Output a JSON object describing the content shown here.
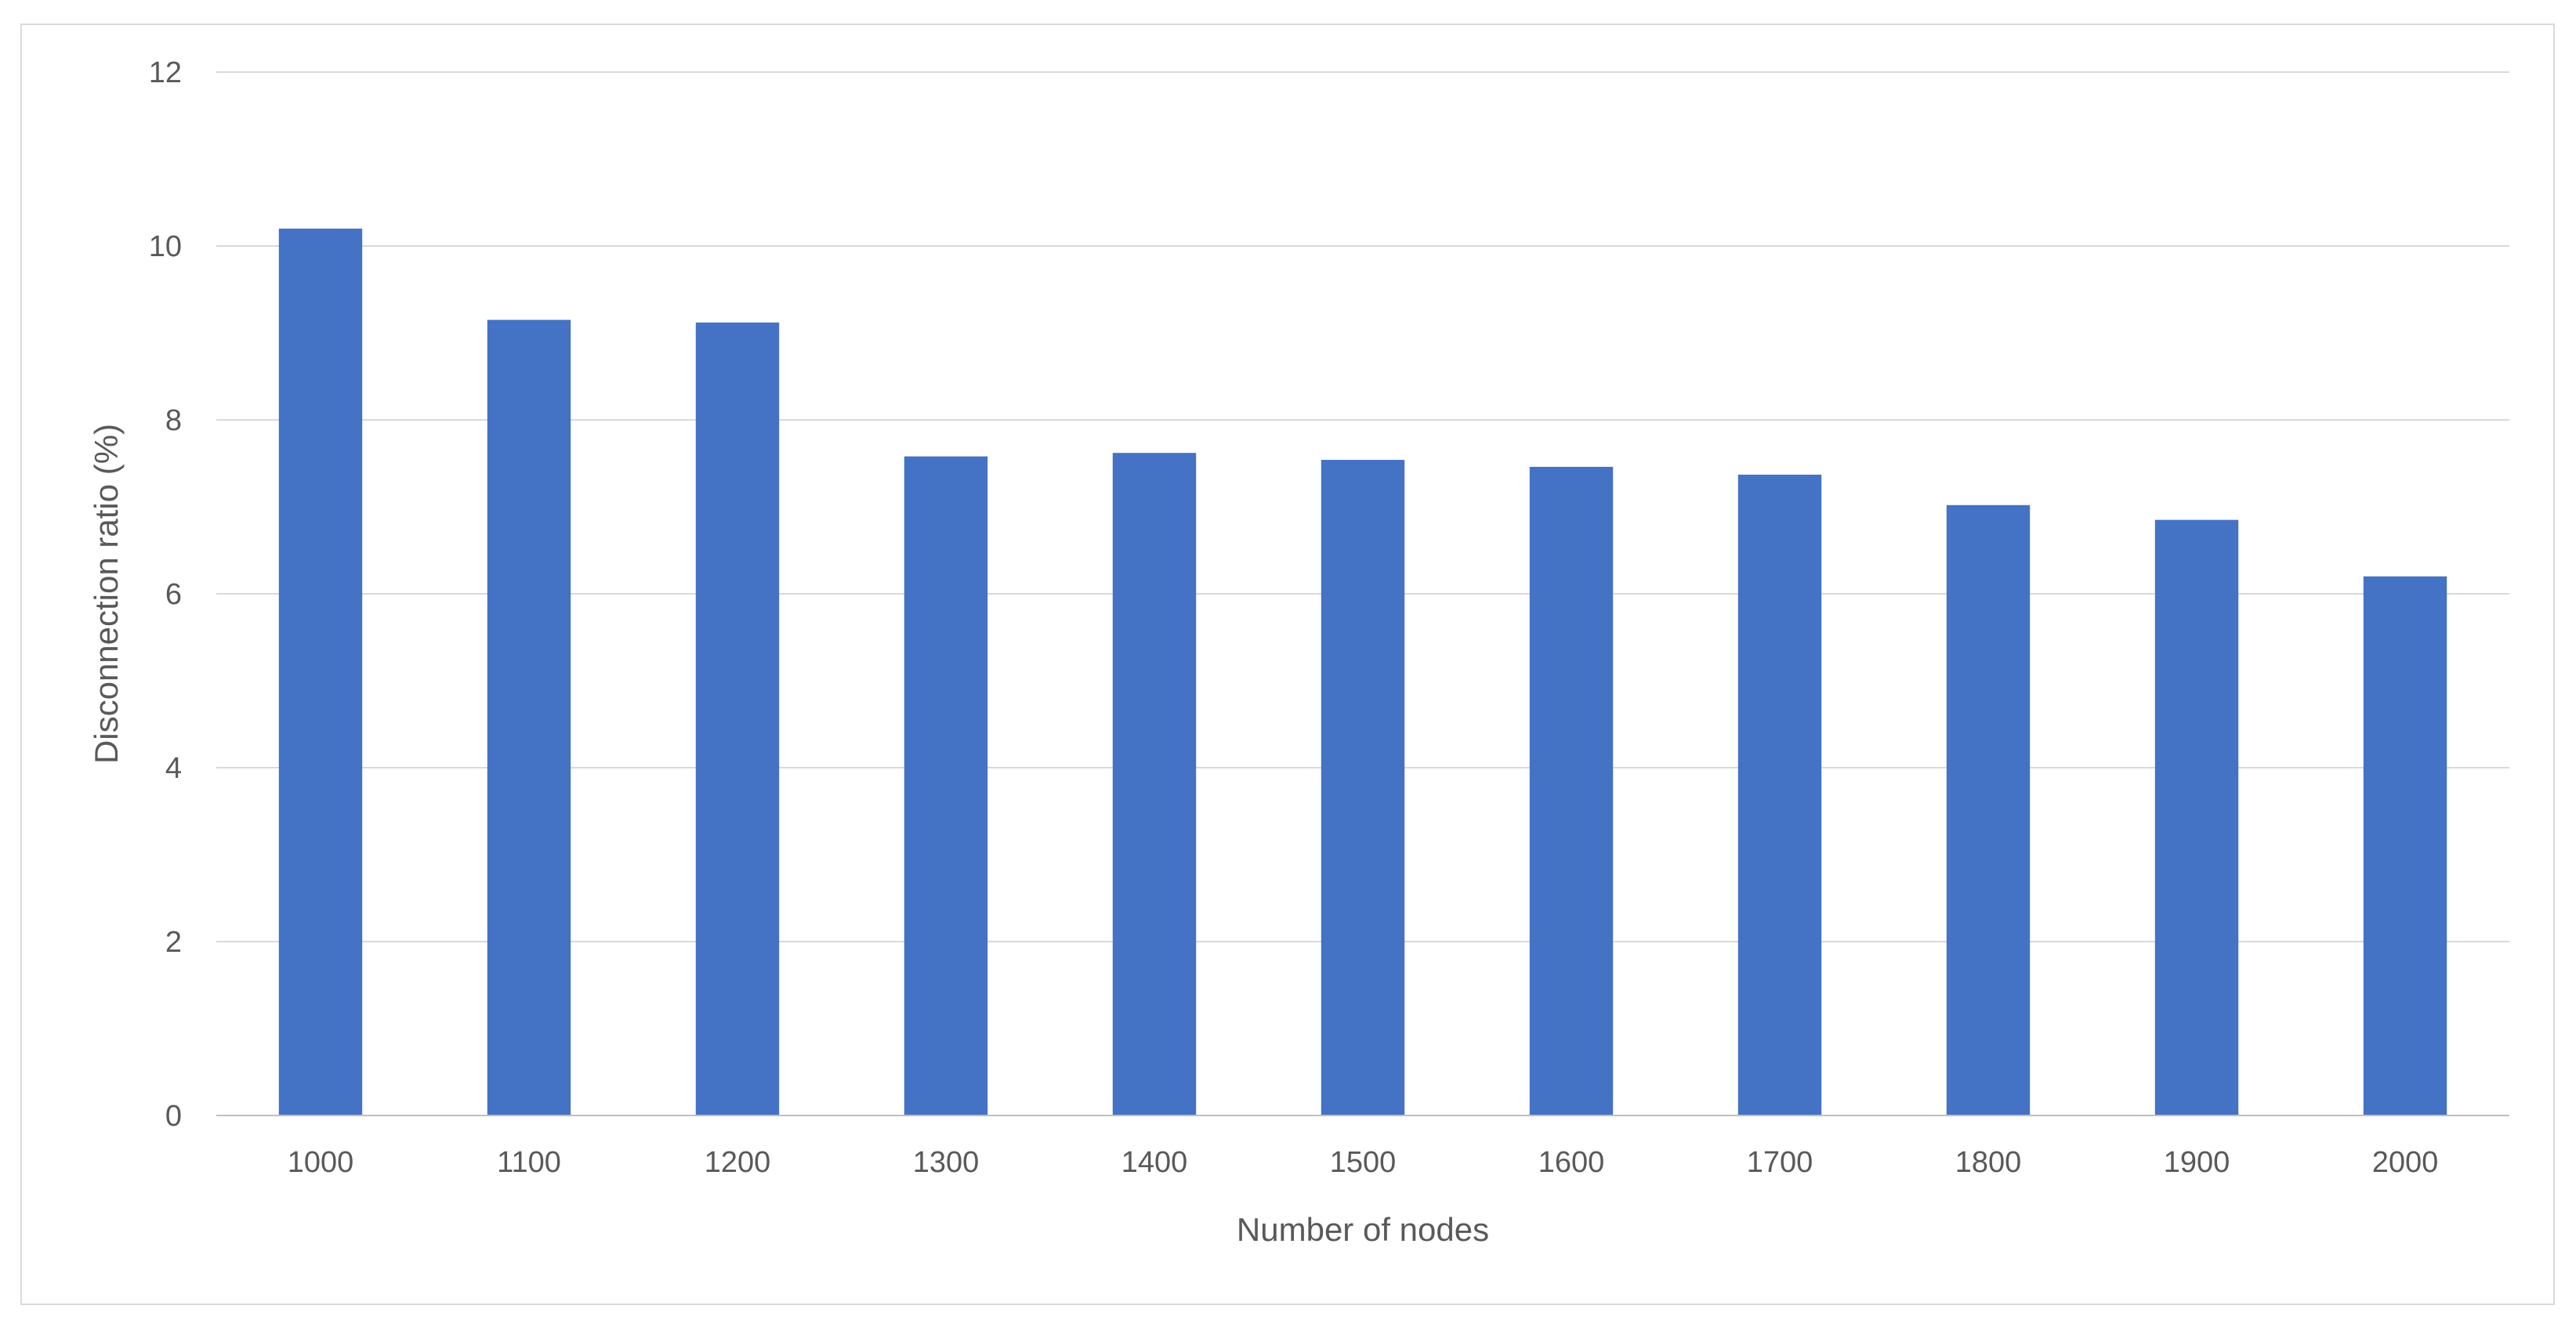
{
  "chart_data": {
    "type": "bar",
    "title": "",
    "xlabel": "Number of nodes",
    "ylabel": "Disconnection ratio (%)",
    "categories": [
      "1000",
      "1100",
      "1200",
      "1300",
      "1400",
      "1500",
      "1600",
      "1700",
      "1800",
      "1900",
      "2000"
    ],
    "values": [
      10.2,
      9.15,
      9.12,
      7.58,
      7.62,
      7.54,
      7.46,
      7.37,
      7.02,
      6.85,
      6.2
    ],
    "ylim": [
      0,
      12
    ],
    "yticks": [
      0,
      2,
      4,
      6,
      8,
      10,
      12
    ],
    "grid": true,
    "legend": "none",
    "colors": {
      "bar": "#4472C4",
      "grid": "#d9d9d9",
      "axis": "#bfbfbf",
      "text": "#595959"
    }
  }
}
